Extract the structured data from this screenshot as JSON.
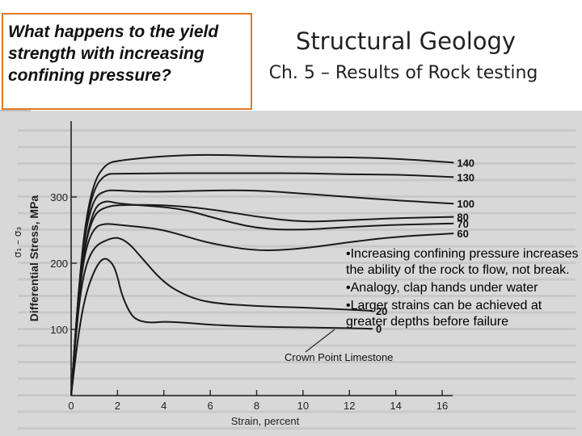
{
  "question": {
    "lines": [
      "What happens to the yield",
      "strength with increasing",
      "confining pressure?"
    ]
  },
  "title": "Structural Geology",
  "subtitle": "Ch. 5 – Results of Rock testing",
  "sigma_label": "σ₁ – σ₃",
  "bullets": [
    "•Increasing confining pressure increases the ability of the rock to flow, not break.",
    "•Analogy, clap hands under water",
    "•Larger strains can be achieved at greater depths before failure"
  ],
  "colors": {
    "question_border": "#e07828",
    "scan_background": "#d8d8d8",
    "curve": "#1a1a1a"
  },
  "chart_data": {
    "type": "line",
    "title": "",
    "xlabel": "Strain, percent",
    "ylabel": "Differential Stress, MPa",
    "xlim": [
      0,
      18
    ],
    "ylim": [
      0,
      370
    ],
    "x_ticks": [
      0,
      2,
      4,
      6,
      8,
      10,
      12,
      14,
      16
    ],
    "y_ticks": [
      100,
      200,
      300
    ],
    "grid": false,
    "legend": "curve-end labels",
    "annotation": "Crown Point Limestone",
    "series": [
      {
        "name": "140",
        "x": [
          0,
          0.3,
          0.6,
          1,
          1.5,
          2,
          4,
          6,
          8,
          10,
          12,
          14,
          16.5
        ],
        "y": [
          0,
          150,
          260,
          325,
          350,
          355,
          362,
          364,
          362,
          360,
          360,
          358,
          352
        ]
      },
      {
        "name": "130",
        "x": [
          0,
          0.3,
          0.6,
          1,
          1.5,
          2,
          4,
          6,
          8,
          10,
          12,
          14,
          16.5
        ],
        "y": [
          0,
          150,
          255,
          315,
          335,
          335,
          336,
          336,
          336,
          336,
          334,
          334,
          330
        ]
      },
      {
        "name": "100",
        "x": [
          0,
          0.3,
          0.6,
          1,
          1.5,
          2,
          3,
          4,
          6,
          8,
          10,
          12,
          14,
          16.5
        ],
        "y": [
          0,
          148,
          248,
          300,
          310,
          310,
          308,
          308,
          310,
          310,
          305,
          300,
          295,
          290
        ]
      },
      {
        "name": "80",
        "x": [
          0,
          0.3,
          0.6,
          1,
          1.5,
          2,
          4,
          6,
          8,
          10,
          12,
          14,
          16.5
        ],
        "y": [
          0,
          145,
          230,
          275,
          285,
          288,
          288,
          282,
          270,
          262,
          265,
          268,
          270
        ]
      },
      {
        "name": "70",
        "x": [
          0,
          0.3,
          0.6,
          1,
          1.5,
          2,
          4,
          5,
          6,
          8,
          10,
          12,
          14,
          16.5
        ],
        "y": [
          0,
          145,
          230,
          285,
          295,
          290,
          285,
          280,
          270,
          252,
          250,
          255,
          258,
          260
        ]
      },
      {
        "name": "60",
        "x": [
          0,
          0.3,
          0.6,
          1,
          1.5,
          2,
          3,
          4,
          5,
          6,
          8,
          10,
          12,
          14,
          16.5
        ],
        "y": [
          0,
          140,
          220,
          255,
          260,
          258,
          255,
          250,
          240,
          230,
          218,
          222,
          232,
          240,
          245
        ]
      },
      {
        "name": "20",
        "x": [
          0,
          0.3,
          0.6,
          1,
          1.5,
          2,
          2.5,
          3,
          4,
          5,
          6,
          8,
          10,
          12,
          13
        ],
        "y": [
          0,
          130,
          195,
          225,
          235,
          240,
          230,
          210,
          170,
          150,
          140,
          135,
          133,
          130,
          128
        ]
      },
      {
        "name": "0",
        "x": [
          0,
          0.3,
          0.6,
          1,
          1.4,
          1.8,
          2,
          2.2,
          2.6,
          3,
          3.5,
          4,
          5,
          6,
          8,
          10,
          12,
          13
        ],
        "y": [
          0,
          90,
          150,
          190,
          210,
          200,
          180,
          150,
          120,
          112,
          110,
          112,
          110,
          107,
          104,
          103,
          102,
          101
        ]
      }
    ]
  }
}
